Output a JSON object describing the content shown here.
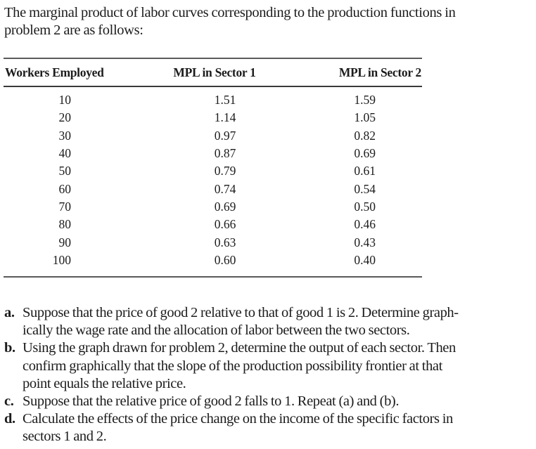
{
  "intro": {
    "lines": [
      "The marginal product of labor curves corresponding to the production functions in",
      "problem 2 are as follows:"
    ]
  },
  "table": {
    "headers": [
      "Workers Employed",
      "MPL in Sector 1",
      "MPL in Sector 2"
    ],
    "rows": [
      [
        "10",
        "1.51",
        "1.59"
      ],
      [
        "20",
        "1.14",
        "1.05"
      ],
      [
        "30",
        "0.97",
        "0.82"
      ],
      [
        "40",
        "0.87",
        "0.69"
      ],
      [
        "50",
        "0.79",
        "0.61"
      ],
      [
        "60",
        "0.74",
        "0.54"
      ],
      [
        "70",
        "0.69",
        "0.50"
      ],
      [
        "80",
        "0.66",
        "0.46"
      ],
      [
        "90",
        "0.63",
        "0.43"
      ],
      [
        "100",
        "0.60",
        "0.40"
      ]
    ]
  },
  "questions": [
    {
      "letter": "a.",
      "lines": [
        "Suppose that the price of good 2 relative to that of good 1 is 2. Determine graph-",
        "ically the wage rate and the allocation of labor between the two sectors."
      ]
    },
    {
      "letter": "b.",
      "lines": [
        "Using the graph drawn for problem 2, determine the output of each sector. Then",
        "confirm graphically that the slope of the production possibility frontier at that",
        "point equals the relative price."
      ]
    },
    {
      "letter": "c.",
      "lines": [
        "Suppose that the relative price of good 2 falls to 1. Repeat (a) and (b)."
      ]
    },
    {
      "letter": "d.",
      "lines": [
        "Calculate the effects of the price change on the income of the specific factors in",
        "sectors 1 and 2."
      ]
    }
  ]
}
